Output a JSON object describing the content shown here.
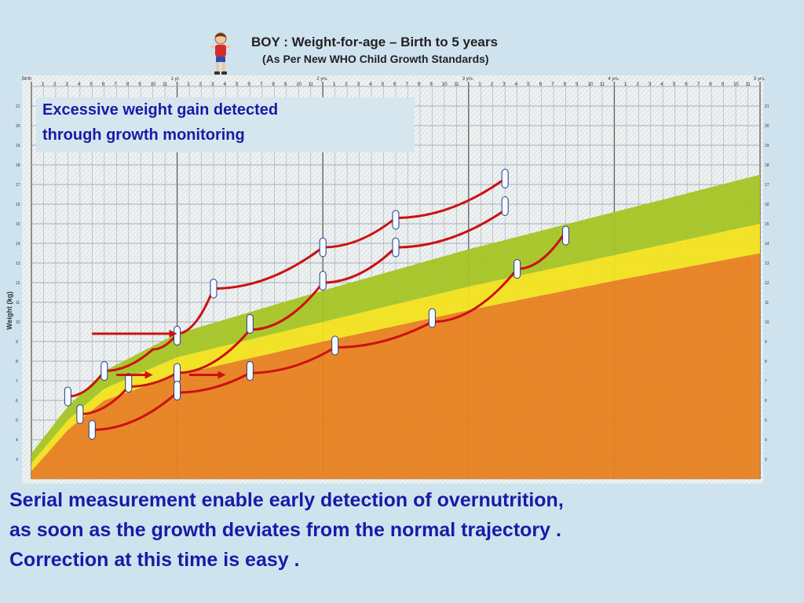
{
  "header": {
    "title": "BOY : Weight-for-age – Birth to 5 years",
    "subtitle": "(As Per New WHO Child Growth Standards)",
    "boy_icon": "boy-figure-icon"
  },
  "callout": {
    "line1": "Excessive weight  gain detected",
    "line2": "through  growth monitoring"
  },
  "caption": {
    "line1": "Serial measurement enable early detection of overnutrition,",
    "line2": "as soon as the growth  deviates   from the normal trajectory .",
    "line3": "Correction at this time is easy ."
  },
  "chart_data": {
    "type": "line",
    "ylabel": "Weight (kg)",
    "xunits": "months",
    "xlim": [
      0,
      60
    ],
    "ylim": [
      2,
      22
    ],
    "year_labels": [
      "Birth",
      "1 yr.",
      "2 yrs.",
      "3 yrs.",
      "4 yrs.",
      "5 yrs."
    ],
    "month_ticks": [
      "1",
      "2",
      "3",
      "4",
      "5",
      "6",
      "7",
      "8",
      "9",
      "10",
      "11"
    ],
    "y_ticks": [
      3,
      4,
      5,
      6,
      7,
      8,
      9,
      10,
      11,
      12,
      13,
      14,
      15,
      16,
      17,
      18,
      19,
      20,
      21
    ],
    "bands": [
      {
        "name": "orange",
        "color": "#e8801f",
        "lower": [
          [
            0,
            2.0
          ],
          [
            60,
            2.0
          ]
        ],
        "upper": [
          [
            0,
            2.4
          ],
          [
            3,
            4.5
          ],
          [
            6,
            6.0
          ],
          [
            12,
            7.3
          ],
          [
            24,
            9.0
          ],
          [
            36,
            10.6
          ],
          [
            48,
            12.1
          ],
          [
            60,
            13.5
          ]
        ]
      },
      {
        "name": "yellow",
        "color": "#f2e11c",
        "lower": [
          [
            0,
            2.4
          ],
          [
            3,
            4.5
          ],
          [
            6,
            6.0
          ],
          [
            12,
            7.3
          ],
          [
            24,
            9.0
          ],
          [
            36,
            10.6
          ],
          [
            48,
            12.1
          ],
          [
            60,
            13.5
          ]
        ],
        "upper": [
          [
            0,
            2.8
          ],
          [
            3,
            5.0
          ],
          [
            6,
            6.6
          ],
          [
            12,
            8.2
          ],
          [
            24,
            10.0
          ],
          [
            36,
            11.8
          ],
          [
            48,
            13.4
          ],
          [
            60,
            15.0
          ]
        ]
      },
      {
        "name": "green",
        "color": "#a5c424",
        "lower": [
          [
            0,
            2.8
          ],
          [
            3,
            5.0
          ],
          [
            6,
            6.6
          ],
          [
            12,
            8.2
          ],
          [
            24,
            10.0
          ],
          [
            36,
            11.8
          ],
          [
            48,
            13.4
          ],
          [
            60,
            15.0
          ]
        ],
        "upper": [
          [
            0,
            3.3
          ],
          [
            3,
            5.7
          ],
          [
            6,
            7.5
          ],
          [
            12,
            9.4
          ],
          [
            24,
            11.6
          ],
          [
            36,
            13.7
          ],
          [
            48,
            15.6
          ],
          [
            60,
            17.5
          ]
        ]
      }
    ],
    "series": [
      {
        "color": "#cc1111",
        "points": [
          [
            3,
            6.2
          ],
          [
            6,
            7.5
          ],
          [
            10,
            8.6
          ],
          [
            12,
            9.4
          ],
          [
            15,
            11.7
          ],
          [
            24,
            13.8
          ],
          [
            30,
            15.3
          ],
          [
            39,
            17.3
          ]
        ]
      },
      {
        "color": "#cc1111",
        "points": [
          [
            4,
            5.3
          ],
          [
            8,
            6.7
          ],
          [
            12,
            7.4
          ],
          [
            18,
            9.6
          ],
          [
            24,
            12.0
          ],
          [
            30,
            13.8
          ],
          [
            39,
            15.7
          ]
        ]
      },
      {
        "color": "#cc1111",
        "points": [
          [
            5,
            4.5
          ],
          [
            12,
            6.4
          ],
          [
            18,
            7.4
          ],
          [
            25,
            8.7
          ],
          [
            33,
            10.0
          ],
          [
            40,
            12.7
          ],
          [
            44,
            14.6
          ]
        ]
      }
    ],
    "markers": [
      [
        3,
        6.2
      ],
      [
        4,
        5.3
      ],
      [
        5,
        4.5
      ],
      [
        6,
        7.5
      ],
      [
        8,
        6.9
      ],
      [
        12,
        9.3
      ],
      [
        12,
        7.4
      ],
      [
        12,
        6.5
      ],
      [
        15,
        11.7
      ],
      [
        18,
        9.9
      ],
      [
        18,
        7.5
      ],
      [
        24,
        13.8
      ],
      [
        24,
        12.1
      ],
      [
        25,
        8.8
      ],
      [
        30,
        15.2
      ],
      [
        30,
        13.8
      ],
      [
        33,
        10.2
      ],
      [
        39,
        17.3
      ],
      [
        39,
        15.9
      ],
      [
        40,
        12.7
      ],
      [
        44,
        14.4
      ]
    ],
    "arrows": [
      {
        "x0": 5,
        "x1": 12,
        "y": 9.4
      },
      {
        "x0": 7,
        "x1": 10,
        "y": 7.3
      },
      {
        "x0": 13,
        "x1": 16,
        "y": 7.3
      }
    ]
  }
}
